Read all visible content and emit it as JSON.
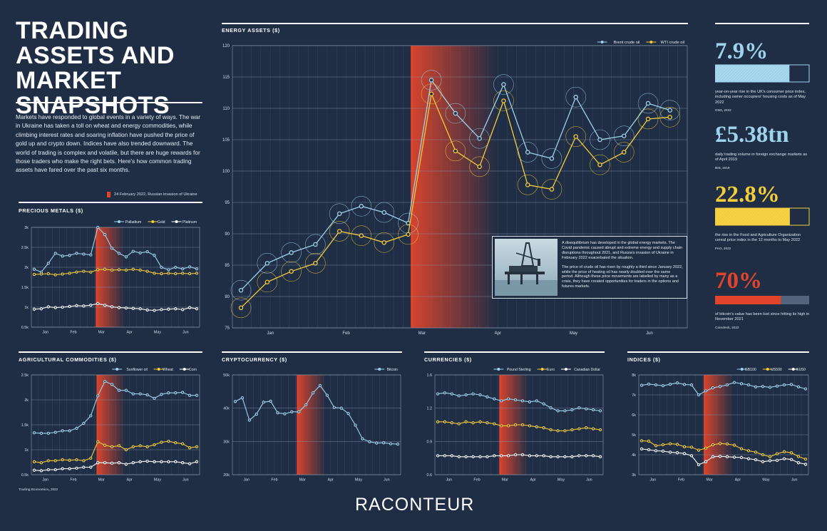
{
  "page": {
    "title": "TRADING ASSETS AND MARKET SNAPSHOTS",
    "intro": "Markets have responded to global events in a variety of ways. The war in Ukraine has taken a toll on wheat and energy commodities, while climbing interest rates and soaring inflation have pushed the price of gold up and crypto down. Indices have also trended downward. The world of trading is complex and volatile, but there are huge rewards for those traders who make the right bets. Here's how common trading assets have fared over the past six months.",
    "invasion_note": "24 February 2022, Russian invasion of Ukraine",
    "source_agri": "Trading Economics, 2022",
    "brand": "RACONTEUR"
  },
  "colors": {
    "background": "#1f2d45",
    "blue": "#9fd3ec",
    "yellow": "#f4cd3a",
    "white": "#ffffff",
    "invasion": "#e0452c"
  },
  "photo_box": {
    "text1": "A disequilibrium has developed in the global energy markets. The Covid pandemic caused abrupt and extreme energy and supply chain disruptions throughout 2021, and Russia's invasion of Ukraine in February 2022 exacerbated the situation.",
    "text2": "The price of crude oil has risen by roughly a third since January 2022, while the price of heating oil has nearly doubled over the same period. Although these price movements are labelled by many as a crisis, they have created opportunities for traders in the options and futures markets."
  },
  "stats": [
    {
      "value": "7.9%",
      "desc": "year-on-year rise in the UK's consumer price index, including owner occupiers' housing costs as of May 2022",
      "source": "ONS, 2022",
      "color": "#9fd3ec",
      "bar_fraction": 0.79
    },
    {
      "value": "£5.38tn",
      "desc": "daily trading volume in foreign exchange markets as of April 2019",
      "source": "BIS, 2019",
      "color": "#9fd3ec"
    },
    {
      "value": "22.8%",
      "desc": "the rise in the Food and Agriculture Organization cereal price index in the 12 months to May 2022",
      "source": "FAO, 2022",
      "color": "#f4cd3a",
      "bar_fraction": 0.795
    },
    {
      "value": "70%",
      "desc": "of bitcoin's value has been lost since hitting its high in November 2021",
      "source": "Coindesk, 2022",
      "color": "#e0452c",
      "bar_fraction": 0.7
    }
  ],
  "chart_data": [
    {
      "id": "energy",
      "title": "ENERGY ASSETS ($)",
      "type": "line",
      "months": [
        "Jan",
        "Feb",
        "Mar",
        "Apr",
        "May",
        "Jun"
      ],
      "yticks": [
        "75",
        "80",
        "85",
        "90",
        "95",
        "100",
        "105",
        "110",
        "115",
        "120"
      ],
      "ylim": [
        75,
        120
      ],
      "invasion_x": 0.393,
      "series": [
        {
          "name": "Brent crude oil",
          "color": "#9fd3ec",
          "x": [
            0,
            0.06,
            0.115,
            0.17,
            0.225,
            0.275,
            0.327,
            0.382,
            0.435,
            0.49,
            0.545,
            0.6,
            0.655,
            0.71,
            0.765,
            0.82,
            0.875,
            0.93,
            0.98
          ],
          "values": [
            81,
            85.3,
            87,
            88.3,
            93.2,
            94.4,
            93.4,
            91.7,
            114.5,
            109.2,
            105.2,
            113.8,
            103,
            102,
            111.8,
            105,
            105.6,
            110.8,
            109.7
          ]
        },
        {
          "name": "WTI crude oil",
          "color": "#f4cd3a",
          "x": [
            0,
            0.06,
            0.115,
            0.17,
            0.225,
            0.275,
            0.327,
            0.382,
            0.435,
            0.49,
            0.545,
            0.6,
            0.655,
            0.71,
            0.765,
            0.82,
            0.875,
            0.93,
            0.98
          ],
          "values": [
            78.2,
            82.3,
            84,
            85.3,
            90.4,
            89.7,
            88.6,
            89.9,
            112.3,
            103.2,
            100.7,
            111.2,
            97.8,
            97.1,
            105.5,
            101,
            103,
            108.3,
            108.6
          ]
        }
      ]
    },
    {
      "id": "metals",
      "title": "PRECIOUS METALS ($)",
      "type": "line",
      "months": [
        "Jan",
        "Feb",
        "Mar",
        "Apr",
        "May",
        "Jun"
      ],
      "yticks": [
        "0.5k",
        "1k",
        "1.5k",
        "2k",
        "2.5k",
        "3k"
      ],
      "ylim": [
        500,
        3000
      ],
      "invasion_x": 0.385,
      "series": [
        {
          "name": "Palladium",
          "color": "#9fd3ec",
          "values": [
            1950,
            1880,
            2100,
            2350,
            2280,
            2300,
            2350,
            2330,
            2310,
            3000,
            2820,
            2480,
            2350,
            2260,
            2400,
            2360,
            2390,
            2300,
            2000,
            1940,
            2000,
            1960,
            2010,
            1960
          ]
        },
        {
          "name": "Gold",
          "color": "#f4cd3a",
          "values": [
            1820,
            1830,
            1840,
            1810,
            1830,
            1850,
            1880,
            1900,
            1880,
            1940,
            1950,
            1930,
            1940,
            1930,
            1950,
            1930,
            1900,
            1850,
            1840,
            1850,
            1840,
            1850,
            1840,
            1850
          ]
        },
        {
          "name": "Platinum",
          "color": "#ffffff",
          "values": [
            950,
            960,
            1010,
            990,
            1000,
            1020,
            1040,
            1030,
            1050,
            1090,
            1050,
            1010,
            990,
            980,
            970,
            960,
            930,
            920,
            940,
            950,
            960,
            940,
            990,
            960
          ]
        }
      ]
    },
    {
      "id": "agri",
      "title": "AGRICULTURAL COMMODITIES ($)",
      "type": "line",
      "months": [
        "Jan",
        "Feb",
        "Mar",
        "Apr",
        "May",
        "Jun"
      ],
      "yticks": [
        "0.5k",
        "1k",
        "1.5k",
        "2k",
        "2.5k"
      ],
      "ylim": [
        500,
        2500
      ],
      "invasion_x": 0.39,
      "series": [
        {
          "name": "Sunflower oil",
          "color": "#9fd3ec",
          "values": [
            1340,
            1330,
            1330,
            1350,
            1380,
            1380,
            1430,
            1530,
            1680,
            2080,
            2370,
            2310,
            2190,
            2190,
            2120,
            2120,
            2100,
            2030,
            2110,
            2140,
            2140,
            2150,
            2090,
            2090
          ]
        },
        {
          "name": "Wheat",
          "color": "#f4cd3a",
          "values": [
            760,
            740,
            780,
            780,
            800,
            790,
            800,
            780,
            830,
            1160,
            1090,
            1060,
            1080,
            1000,
            1060,
            1080,
            1060,
            1100,
            1150,
            1170,
            1140,
            1120,
            1040,
            1060
          ]
        },
        {
          "name": "Corn",
          "color": "#ffffff",
          "values": [
            590,
            580,
            600,
            600,
            620,
            620,
            630,
            650,
            650,
            740,
            740,
            730,
            740,
            710,
            740,
            760,
            770,
            760,
            760,
            760,
            760,
            740,
            720,
            760
          ]
        }
      ]
    },
    {
      "id": "crypto",
      "title": "CRYPTOCURRENCY ($)",
      "type": "line",
      "months": [
        "Jan",
        "Feb",
        "Mar",
        "Apr",
        "May",
        "Jun"
      ],
      "yticks": [
        "20k",
        "30k",
        "40k",
        "50k"
      ],
      "ylim": [
        20000,
        50000
      ],
      "invasion_x": 0.385,
      "series": [
        {
          "name": "Bitcoin",
          "color": "#9fd3ec",
          "values": [
            42000,
            43100,
            36400,
            38200,
            41800,
            42100,
            38600,
            38300,
            38900,
            38900,
            41000,
            44600,
            46800,
            43900,
            40200,
            40000,
            38400,
            34900,
            30800,
            29900,
            29500,
            29600,
            29300,
            29200
          ]
        }
      ]
    },
    {
      "id": "currencies",
      "title": "CURRENCIES ($)",
      "type": "line",
      "months": [
        "Jan",
        "Feb",
        "Mar",
        "Apr",
        "May",
        "Jun"
      ],
      "yticks": [
        "0.6",
        "0.9",
        "1.2",
        "1.6"
      ],
      "ylim": [
        0.6,
        1.6
      ],
      "invasion_x": 0.385,
      "series": [
        {
          "name": "Pound Sterling",
          "color": "#9fd3ec",
          "values": [
            1.41,
            1.42,
            1.41,
            1.39,
            1.4,
            1.41,
            1.4,
            1.38,
            1.36,
            1.34,
            1.36,
            1.35,
            1.34,
            1.33,
            1.34,
            1.31,
            1.27,
            1.24,
            1.24,
            1.25,
            1.27,
            1.26,
            1.25,
            1.24
          ]
        },
        {
          "name": "Euro",
          "color": "#f4cd3a",
          "values": [
            1.13,
            1.13,
            1.12,
            1.11,
            1.13,
            1.12,
            1.13,
            1.12,
            1.11,
            1.09,
            1.09,
            1.1,
            1.1,
            1.09,
            1.08,
            1.07,
            1.05,
            1.04,
            1.04,
            1.05,
            1.06,
            1.07,
            1.06,
            1.05
          ]
        },
        {
          "name": "Canadian Dollar",
          "color": "#ffffff",
          "values": [
            0.79,
            0.79,
            0.79,
            0.78,
            0.78,
            0.78,
            0.78,
            0.78,
            0.79,
            0.79,
            0.79,
            0.8,
            0.8,
            0.79,
            0.79,
            0.79,
            0.78,
            0.78,
            0.78,
            0.78,
            0.79,
            0.79,
            0.79,
            0.78
          ]
        }
      ]
    },
    {
      "id": "indices",
      "title": "INDICES ($)",
      "type": "line",
      "months": [
        "Jan",
        "Feb",
        "Mar",
        "Apr",
        "May",
        "Jun"
      ],
      "yticks": [
        "3k",
        "4k",
        "5k",
        "6k",
        "7k",
        "8k"
      ],
      "ylim": [
        3000,
        8000
      ],
      "invasion_x": 0.385,
      "series": [
        {
          "name": "GB100",
          "color": "#9fd3ec",
          "values": [
            7480,
            7540,
            7500,
            7460,
            7530,
            7600,
            7520,
            7500,
            7000,
            7200,
            7350,
            7420,
            7500,
            7620,
            7560,
            7500,
            7400,
            7420,
            7380,
            7440,
            7500,
            7520,
            7400,
            7300
          ]
        },
        {
          "name": "US500",
          "color": "#f4cd3a",
          "values": [
            4700,
            4680,
            4450,
            4500,
            4550,
            4520,
            4400,
            4380,
            4230,
            4330,
            4500,
            4560,
            4540,
            4480,
            4300,
            4200,
            4130,
            4000,
            3900,
            4050,
            4150,
            4100,
            3910,
            3780
          ]
        },
        {
          "name": "EU50",
          "color": "#ffffff",
          "values": [
            4290,
            4250,
            4200,
            4180,
            4130,
            4100,
            4060,
            3950,
            3500,
            3650,
            3900,
            3920,
            3900,
            3880,
            3860,
            3800,
            3750,
            3650,
            3700,
            3720,
            3800,
            3760,
            3600,
            3520
          ]
        }
      ]
    }
  ]
}
